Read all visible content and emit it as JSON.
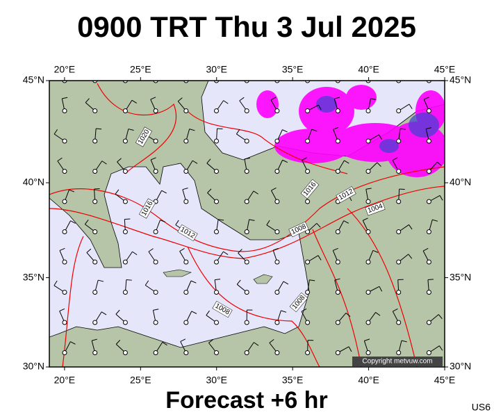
{
  "title": "0900 TRT Thu 3 Jul 2025",
  "map": {
    "lon_range": [
      19,
      45
    ],
    "lat_range": [
      30,
      45
    ],
    "lon_ticks": [
      {
        "value": 20,
        "label": "20°E"
      },
      {
        "value": 25,
        "label": "25°E"
      },
      {
        "value": 30,
        "label": "30°E"
      },
      {
        "value": 35,
        "label": "35°E"
      },
      {
        "value": 40,
        "label": "40°E"
      },
      {
        "value": 45,
        "label": "45°E"
      }
    ],
    "lat_ticks": [
      {
        "value": 30,
        "label": "30°N"
      },
      {
        "value": 35,
        "label": "35°N"
      },
      {
        "value": 40,
        "label": "40°N"
      },
      {
        "value": 45,
        "label": "45°N"
      }
    ],
    "isobar_labels": [
      "1020",
      "1016",
      "1016",
      "1012",
      "1004",
      "1012",
      "1008",
      "1008",
      "1008"
    ]
  },
  "footer": {
    "forecast": "Forecast +6 hr",
    "model": "US6",
    "copyright": "Copyright metvuw.com"
  }
}
